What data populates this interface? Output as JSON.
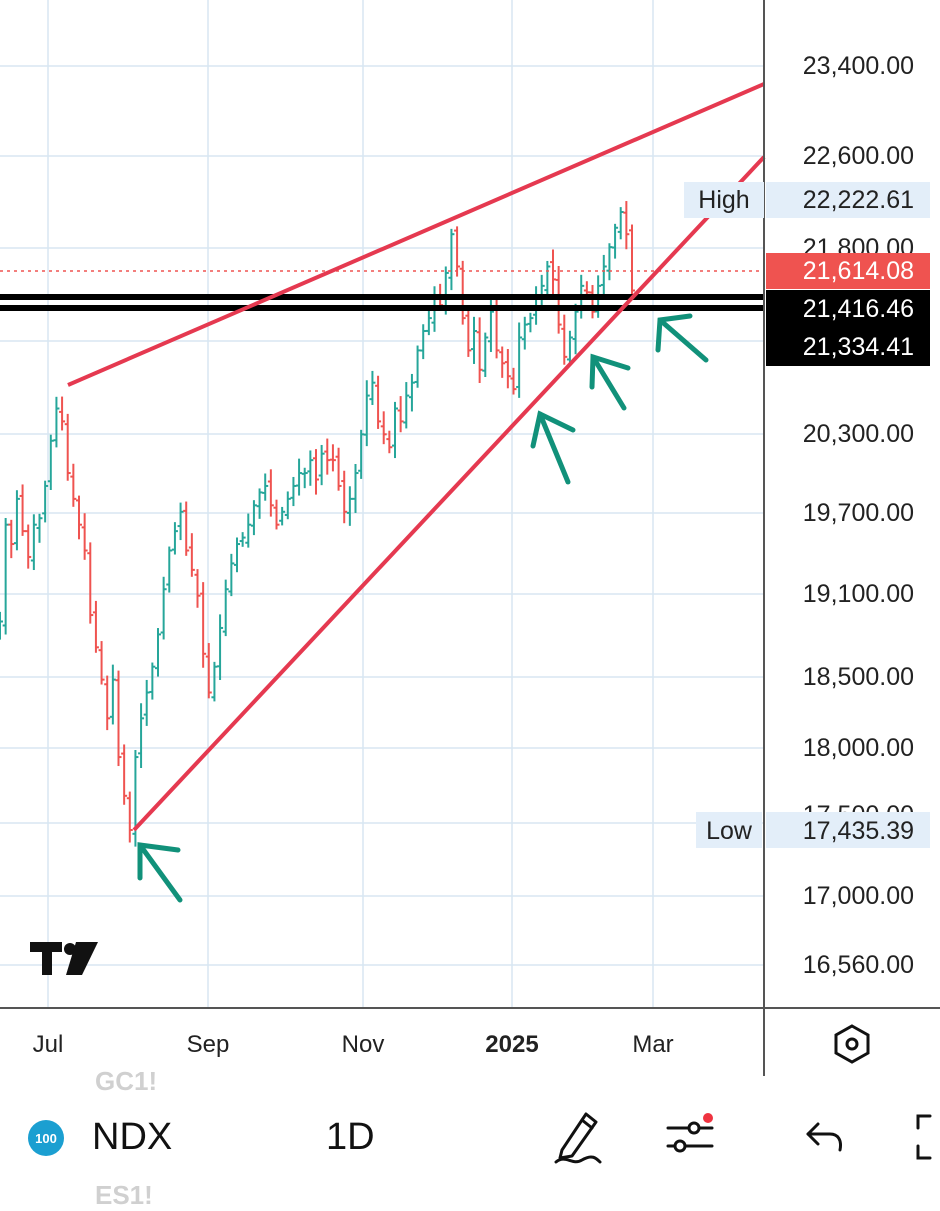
{
  "chart_data": {
    "type": "candlestick",
    "symbol": "NDX",
    "interval": "1D",
    "y_axis": {
      "ticks": [
        "23,400.00",
        "22,600.00",
        "21,800.00",
        "20,300.00",
        "19,700.00",
        "19,100.00",
        "18,500.00",
        "18,000.00",
        "17,500.00",
        "17,000.00",
        "16,560.00"
      ]
    },
    "x_axis": {
      "ticks": [
        "Jul",
        "Sep",
        "Nov",
        "2025",
        "Mar"
      ]
    },
    "price_labels": {
      "high": {
        "label": "High",
        "value": "22,222.61"
      },
      "last": {
        "value": "21,614.08"
      },
      "line1": {
        "value": "21,416.46"
      },
      "line2": {
        "value": "21,334.41"
      },
      "low": {
        "label": "Low",
        "value": "17,435.39"
      }
    },
    "ohlc_close_path": [
      19050,
      19800,
      19650,
      20000,
      19750,
      19550,
      19800,
      19850,
      20100,
      20450,
      20700,
      20600,
      20200,
      20000,
      19800,
      19600,
      19100,
      18850,
      18600,
      18300,
      18600,
      18000,
      17700,
      17435,
      18000,
      18300,
      18500,
      18700,
      18950,
      19300,
      19600,
      19750,
      19900,
      19600,
      19450,
      19250,
      18800,
      18500,
      18700,
      19000,
      19300,
      19500,
      19650,
      19700,
      19800,
      19950,
      20050,
      20100,
      19950,
      19800,
      19900,
      20000,
      20100,
      20200,
      20200,
      20300,
      20150,
      20350,
      20300,
      20300,
      20100,
      19900,
      20000,
      20200,
      20500,
      20800,
      20900,
      20600,
      20500,
      20400,
      20700,
      20600,
      20800,
      20900,
      21150,
      21300,
      21400,
      21550,
      21500,
      21750,
      22050,
      21800,
      21400,
      21150,
      21300,
      21000,
      21250,
      21450,
      21150,
      21050,
      20950,
      20850,
      21250,
      21350,
      21400,
      21550,
      21650,
      21800,
      21700,
      21350,
      21100,
      21250,
      21450,
      21650,
      21600,
      21450,
      21650,
      21800,
      21950,
      22100,
      22222,
      22050,
      21614
    ],
    "trendlines": [
      {
        "from": {
          "date": "Jul",
          "price": 20780
        },
        "to": {
          "date": "Mar+",
          "price": 23300
        }
      },
      {
        "from": {
          "date": "Aug",
          "price": 17435
        },
        "to": {
          "date": "Mar+",
          "price": 22500
        }
      }
    ],
    "colors": {
      "up": "#26a69a",
      "down": "#ef5350",
      "trendline": "#e53950",
      "arrow": "#11917a",
      "grid": "#d8e6f2",
      "last_price_bg": "#ef5350",
      "level_bg": "#000000",
      "label_bg": "#e3eef9"
    }
  },
  "toolbar": {
    "symbol_badge": "100",
    "symbol": "NDX",
    "interval": "1D",
    "ghost_top": "GC1!",
    "ghost_bottom": "ES1!",
    "icons": [
      "pencil-icon",
      "settings-sliders-icon",
      "undo-icon",
      "fullscreen-icon",
      "hexagon-settings-icon"
    ]
  }
}
